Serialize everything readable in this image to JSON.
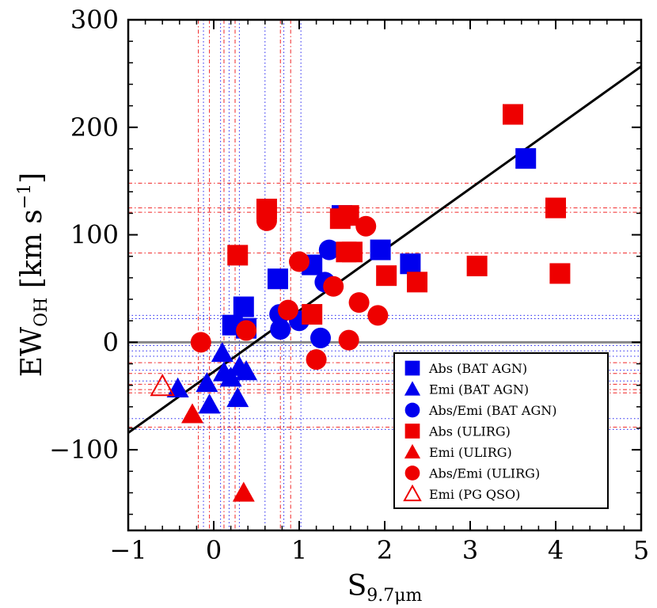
{
  "chart_data": {
    "type": "scatter",
    "xlabel": "S",
    "xlabel_sub": "9.7μm",
    "ylabel_main": "EW",
    "ylabel_sub": "OH",
    "ylabel_unit": "[km s",
    "ylabel_exp": "−1",
    "ylabel_close": "]",
    "xlim": [
      -1,
      5
    ],
    "ylim": [
      -175,
      300
    ],
    "xticks": [
      -1,
      0,
      1,
      2,
      3,
      4,
      5
    ],
    "xtick_labels": [
      "−1",
      "0",
      "1",
      "2",
      "3",
      "4",
      "5"
    ],
    "yticks": [
      -100,
      0,
      100,
      200,
      300
    ],
    "ytick_labels": [
      "−100",
      "0",
      "100",
      "200",
      "300"
    ],
    "colors": {
      "bat": "#0000ee",
      "ulirg": "#ee0000",
      "fit": "#000000",
      "zero": "#888888"
    },
    "fit_line": {
      "slope": 56.8,
      "intercept": -27.4
    },
    "zero_line": 0,
    "ref_lines": {
      "vertical": [
        {
          "x": -0.18,
          "color": "ulirg"
        },
        {
          "x": -0.12,
          "color": "bat"
        },
        {
          "x": -0.05,
          "color": "ulirg"
        },
        {
          "x": 0.08,
          "color": "bat"
        },
        {
          "x": 0.12,
          "color": "ulirg"
        },
        {
          "x": 0.18,
          "color": "bat"
        },
        {
          "x": 0.25,
          "color": "ulirg"
        },
        {
          "x": 0.3,
          "color": "bat"
        },
        {
          "x": 0.6,
          "color": "bat"
        },
        {
          "x": 0.78,
          "color": "ulirg"
        },
        {
          "x": 0.82,
          "color": "bat"
        },
        {
          "x": 0.9,
          "color": "ulirg"
        },
        {
          "x": 1.02,
          "color": "bat"
        }
      ],
      "horizontal": [
        {
          "y": 148,
          "color": "ulirg"
        },
        {
          "y": 125,
          "color": "ulirg"
        },
        {
          "y": 121,
          "color": "ulirg"
        },
        {
          "y": 83,
          "color": "ulirg"
        },
        {
          "y": 25,
          "color": "bat"
        },
        {
          "y": 22,
          "color": "bat"
        },
        {
          "y": -3,
          "color": "bat"
        },
        {
          "y": -8,
          "color": "bat"
        },
        {
          "y": -13,
          "color": "bat"
        },
        {
          "y": -19,
          "color": "ulirg"
        },
        {
          "y": -26,
          "color": "bat"
        },
        {
          "y": -29,
          "color": "ulirg"
        },
        {
          "y": -36,
          "color": "bat"
        },
        {
          "y": -39,
          "color": "ulirg"
        },
        {
          "y": -44,
          "color": "ulirg"
        },
        {
          "y": -47,
          "color": "ulirg"
        },
        {
          "y": -71,
          "color": "bat"
        },
        {
          "y": -79,
          "color": "ulirg"
        },
        {
          "y": -81,
          "color": "bat"
        }
      ]
    },
    "series": [
      {
        "name": "Abs (BAT AGN)",
        "marker": "square",
        "color": "bat",
        "points": [
          [
            0.22,
            16
          ],
          [
            0.38,
            13
          ],
          [
            0.35,
            33
          ],
          [
            0.75,
            59
          ],
          [
            1.15,
            72
          ],
          [
            1.5,
            118
          ],
          [
            1.95,
            86
          ],
          [
            2.3,
            73
          ],
          [
            3.65,
            171
          ]
        ]
      },
      {
        "name": "Emi (BAT AGN)",
        "marker": "triangle",
        "color": "bat",
        "points": [
          [
            -0.42,
            -43
          ],
          [
            -0.08,
            -38
          ],
          [
            0.1,
            -10
          ],
          [
            0.12,
            -28
          ],
          [
            0.2,
            -33
          ],
          [
            0.3,
            -23
          ],
          [
            0.38,
            -27
          ],
          [
            0.28,
            -52
          ],
          [
            -0.05,
            -58
          ]
        ]
      },
      {
        "name": "Abs/Emi (BAT AGN)",
        "marker": "circle",
        "color": "bat",
        "points": [
          [
            0.77,
            26
          ],
          [
            0.78,
            12
          ],
          [
            1.0,
            20
          ],
          [
            1.25,
            4
          ],
          [
            1.3,
            56
          ],
          [
            1.35,
            86
          ]
        ]
      },
      {
        "name": "Abs (ULIRG)",
        "marker": "square",
        "color": "ulirg",
        "points": [
          [
            0.28,
            81
          ],
          [
            0.62,
            124
          ],
          [
            1.15,
            26
          ],
          [
            1.48,
            115
          ],
          [
            1.58,
            118
          ],
          [
            1.55,
            84
          ],
          [
            1.62,
            84
          ],
          [
            2.02,
            62
          ],
          [
            2.38,
            56
          ],
          [
            3.08,
            71
          ],
          [
            3.5,
            212
          ],
          [
            4.0,
            125
          ],
          [
            4.05,
            64
          ]
        ]
      },
      {
        "name": "Emi (ULIRG)",
        "marker": "triangle",
        "color": "ulirg",
        "points": [
          [
            -0.25,
            -67
          ],
          [
            0.35,
            -140
          ]
        ]
      },
      {
        "name": "Abs/Emi (ULIRG)",
        "marker": "circle",
        "color": "ulirg",
        "points": [
          [
            -0.15,
            0
          ],
          [
            0.38,
            11
          ],
          [
            0.62,
            113
          ],
          [
            0.87,
            30
          ],
          [
            1.0,
            75
          ],
          [
            1.2,
            -16
          ],
          [
            1.4,
            52
          ],
          [
            1.58,
            2
          ],
          [
            1.7,
            37
          ],
          [
            1.78,
            108
          ],
          [
            1.92,
            25
          ]
        ]
      },
      {
        "name": "Emi (PG QSO)",
        "marker": "triangle-open",
        "color": "ulirg",
        "points": [
          [
            -0.6,
            -41
          ]
        ]
      }
    ],
    "legend": {
      "position": "lower-right",
      "entries": [
        "Abs (BAT AGN)",
        "Emi (BAT AGN)",
        "Abs/Emi (BAT AGN)",
        "Abs (ULIRG)",
        "Emi (ULIRG)",
        "Abs/Emi (ULIRG)",
        "Emi (PG QSO)"
      ]
    }
  }
}
